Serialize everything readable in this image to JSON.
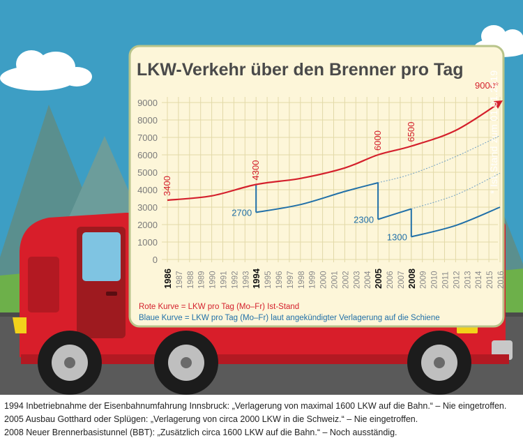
{
  "side_note": "* Ist-Stand zum 01.01.2019",
  "footnotes": [
    "1994 Inbetriebnahme der Eisenbahnumfahrung Innsbruck: „Verlagerung von maximal 1600 LKW auf die Bahn.“ – Nie eingetroffen.",
    "2005 Ausbau Gotthard oder Splügen: „Verlagerung von circa 2000 LKW in die Schweiz.“ – Nie eingetroffen.",
    "2008 Neuer Brennerbasistunnel (BBT): „Zusätzlich circa 1600 LKW auf die Bahn.“ – Noch ausständig."
  ],
  "colors": {
    "red_curve": "#d4202c",
    "blue_curve": "#2170a8",
    "panel": "#fdf6d9",
    "panel_border": "#b8c48a",
    "grid": "#e2d9a8",
    "sky": "#3d9ec4",
    "truck": "#d81e2a"
  },
  "chart_data": {
    "type": "line",
    "title": "LKW-Verkehr über den Brenner pro Tag",
    "ylim": [
      0,
      9000
    ],
    "yticks": [
      0,
      1000,
      2000,
      3000,
      4000,
      5000,
      6000,
      7000,
      8000,
      9000
    ],
    "x": [
      "1986",
      "1987",
      "1988",
      "1989",
      "1990",
      "1991",
      "1992",
      "1993",
      "1994",
      "1995",
      "1996",
      "1997",
      "1998",
      "1999",
      "2000",
      "2001",
      "2002",
      "2003",
      "2004",
      "2005",
      "2006",
      "2007",
      "2008",
      "2009",
      "2010",
      "2011",
      "2012",
      "2013",
      "2014",
      "2015",
      "2016"
    ],
    "highlight_years": [
      "1986",
      "1994",
      "2005",
      "2008"
    ],
    "series": [
      {
        "name": "Rote Kurve = LKW pro Tag (Mo–Fr) Ist-Stand",
        "color": "#d4202c",
        "points": [
          [
            1986,
            3400
          ],
          [
            1990,
            3650
          ],
          [
            1994,
            4300
          ],
          [
            1998,
            4650
          ],
          [
            2002,
            5250
          ],
          [
            2005,
            6000
          ],
          [
            2008,
            6500
          ],
          [
            2012,
            7400
          ],
          [
            2016,
            9000
          ]
        ],
        "labels": [
          {
            "x": 1986,
            "y": 3400,
            "text": "3400"
          },
          {
            "x": 1994,
            "y": 4300,
            "text": "4300"
          },
          {
            "x": 2005,
            "y": 6000,
            "text": "6000"
          },
          {
            "x": 2008,
            "y": 6500,
            "text": "6500"
          },
          {
            "x": 2016,
            "y": 9000,
            "text": "9000*"
          }
        ]
      },
      {
        "name": "Blaue Kurve = LKW pro Tag (Mo–Fr) laut angekündigter Verlagerung auf die Schiene",
        "color": "#2170a8",
        "segments": [
          [
            [
              1994,
              2700
            ],
            [
              1998,
              3150
            ],
            [
              2002,
              3900
            ],
            [
              2005,
              4400
            ]
          ],
          [
            [
              2005,
              2300
            ],
            [
              2008,
              2900
            ]
          ],
          [
            [
              2008,
              1300
            ],
            [
              2012,
              1950
            ],
            [
              2016,
              3000
            ]
          ]
        ],
        "drops": [
          [
            [
              1994,
              4300
            ],
            [
              1994,
              2700
            ]
          ],
          [
            [
              2005,
              4400
            ],
            [
              2005,
              2300
            ]
          ],
          [
            [
              2008,
              2900
            ],
            [
              2008,
              1300
            ]
          ]
        ],
        "dotted": [
          [
            [
              2005,
              4400
            ],
            [
              2008,
              4900
            ],
            [
              2012,
              5900
            ],
            [
              2016,
              7100
            ]
          ],
          [
            [
              2008,
              2900
            ],
            [
              2012,
              3700
            ],
            [
              2016,
              4950
            ]
          ]
        ],
        "labels": [
          {
            "x": 1994,
            "y": 2700,
            "text": "2700"
          },
          {
            "x": 2005,
            "y": 2300,
            "text": "2300"
          },
          {
            "x": 2008,
            "y": 1300,
            "text": "1300"
          }
        ]
      }
    ]
  }
}
